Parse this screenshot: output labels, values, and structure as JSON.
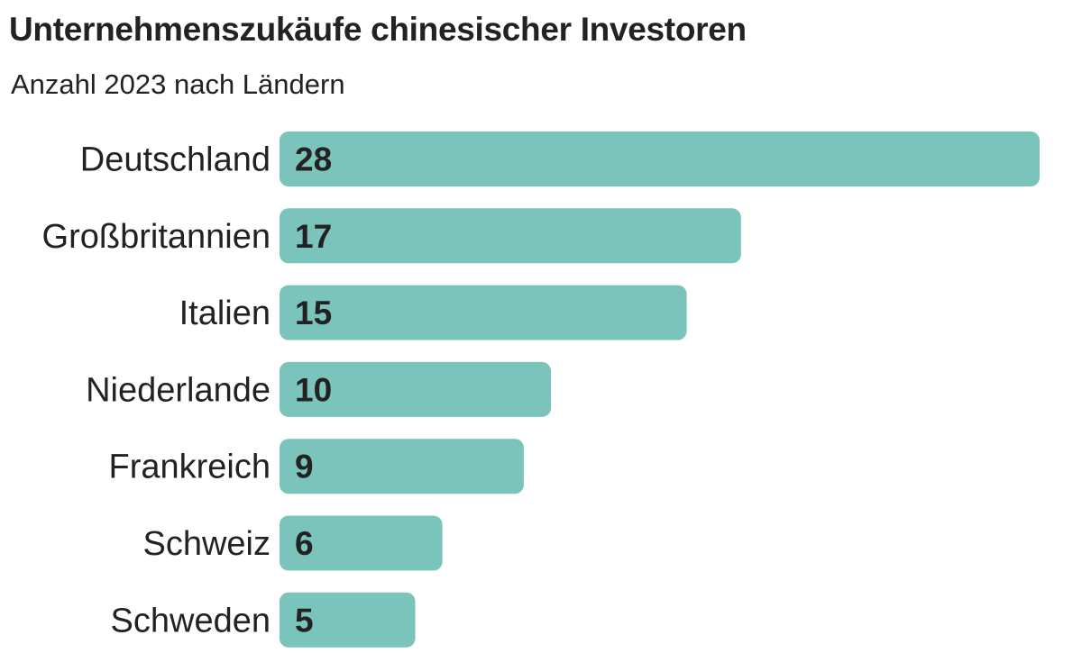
{
  "chart_data": {
    "type": "bar",
    "orientation": "horizontal",
    "title": "Unternehmenszukäufe chinesischer Investoren",
    "subtitle": "Anzahl 2023 nach Ländern",
    "categories": [
      "Deutschland",
      "Großbritannien",
      "Italien",
      "Niederlande",
      "Frankreich",
      "Schweiz",
      "Schweden"
    ],
    "values": [
      28,
      17,
      15,
      10,
      9,
      6,
      5
    ],
    "xlim": [
      0,
      28
    ],
    "grid": false,
    "bar_color": "#7ac4bb",
    "text_color": "#222222"
  }
}
